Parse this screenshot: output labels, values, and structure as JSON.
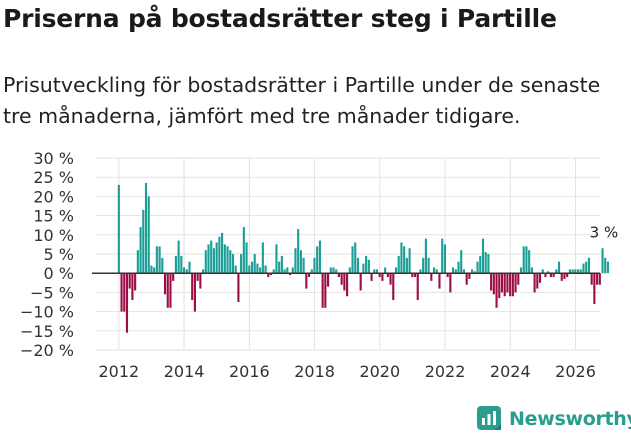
{
  "title": "Priserna på bostadsrätter steg i Partille",
  "subtitle": "Prisutveckling för bostadsrätter i Partille under de senaste tre månaderna, jämfört med tre månader tidigare.",
  "brand": {
    "name": "Newsworthy",
    "icon": "newsworthy-logo-icon"
  },
  "colors": {
    "positive": "#1a9e96",
    "negative": "#9b0e45",
    "grid": "#e2e2e2",
    "zero": "#333333"
  },
  "chart_data": {
    "type": "bar",
    "title": "Priserna på bostadsrätter steg i Partille",
    "xlabel": "",
    "ylabel": "",
    "ylim": [
      -20,
      30
    ],
    "yticks": [
      30,
      25,
      20,
      15,
      10,
      5,
      0,
      -5,
      -10,
      -15,
      -20
    ],
    "ytick_labels": [
      "30 %",
      "25 %",
      "20 %",
      "15 %",
      "10 %",
      "5 %",
      "0 %",
      "−5 %",
      "−10 %",
      "−15 %",
      "−20 %"
    ],
    "xticks": [
      2012,
      2014,
      2016,
      2018,
      2020,
      2022,
      2024,
      2026
    ],
    "xtick_labels": [
      "2012",
      "2014",
      "2016",
      "2018",
      "2020",
      "2022",
      "2024",
      "2026"
    ],
    "x_start": 2012.0,
    "x_step": 0.0833,
    "values": [
      23,
      -10,
      -10,
      -15.5,
      -4,
      -7,
      -4.5,
      6,
      12,
      16.5,
      23.5,
      20,
      2,
      1.5,
      7,
      7,
      4,
      -5.5,
      -9,
      -9,
      -2,
      4.5,
      8.5,
      4.5,
      1.5,
      1,
      3,
      -7,
      -10,
      -2,
      -4,
      1,
      6,
      7.5,
      8.5,
      6.5,
      8,
      9.5,
      10.5,
      7.5,
      7,
      6,
      5,
      2,
      -7.5,
      5,
      12,
      8,
      2,
      3,
      5,
      2.5,
      1.5,
      8,
      2,
      -1,
      -0.5,
      1,
      7.5,
      3,
      4.5,
      1,
      1.5,
      -0.5,
      1.5,
      6.5,
      11.5,
      6,
      4,
      -4,
      -1,
      1,
      4,
      7,
      8.5,
      -9,
      -9,
      -3.5,
      1.5,
      1.5,
      1,
      -1,
      -3,
      -4.5,
      -6,
      1.5,
      7,
      8,
      4,
      -4.5,
      2.5,
      4.5,
      3.5,
      -2,
      1,
      1,
      -1,
      -2,
      1.5,
      -1,
      -3,
      -7,
      1.5,
      4.5,
      8,
      7,
      4,
      6.5,
      -1,
      -1,
      -7,
      1,
      4,
      9,
      4,
      -2,
      1.5,
      1,
      -4,
      9,
      7.5,
      -1,
      -5,
      1.5,
      1,
      3,
      6,
      1,
      -3,
      -1.5,
      1,
      0.5,
      3,
      4.5,
      9,
      5.5,
      5,
      -4.5,
      -5.5,
      -9,
      -6.5,
      -5,
      -6,
      -5,
      -6,
      -6,
      -5,
      -3,
      1.5,
      7,
      7,
      6,
      1.5,
      -5,
      -4,
      -2.5,
      1,
      -1,
      0.5,
      -1,
      -1,
      1,
      3,
      -2,
      -1.5,
      -1,
      1,
      1,
      1,
      1,
      1,
      2.5,
      3,
      4,
      -3,
      -8,
      -3,
      -3,
      6.5,
      4,
      3
    ],
    "annotation": {
      "label": "3 %",
      "value": 3
    }
  }
}
